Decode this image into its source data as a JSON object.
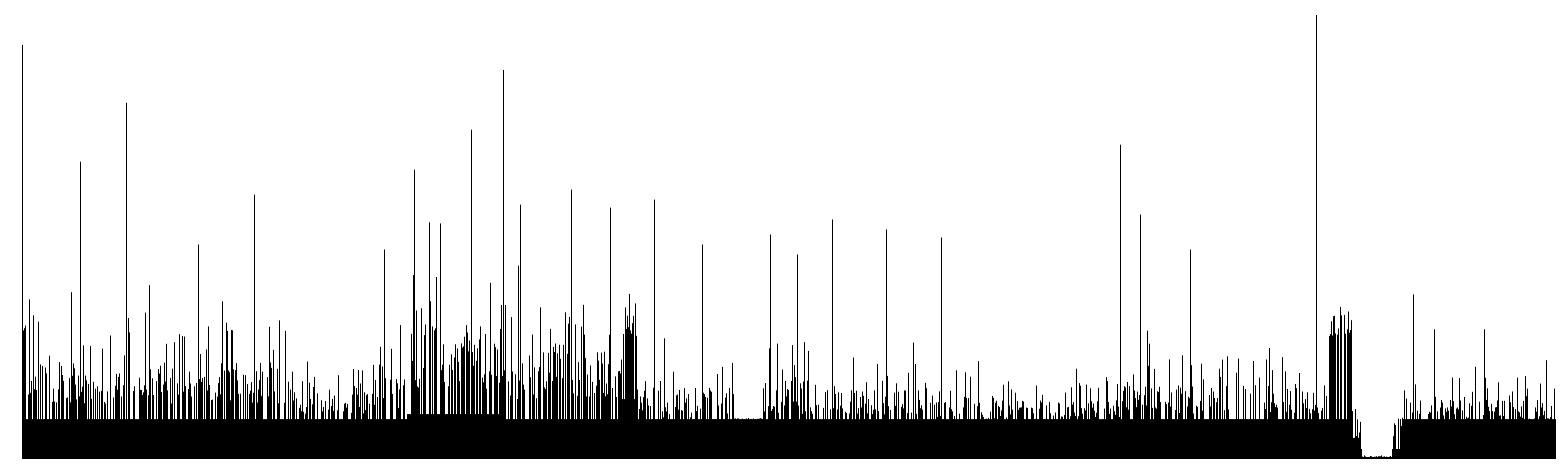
{
  "chart_data": {
    "type": "bar",
    "title": "",
    "xlabel": "",
    "ylabel": "",
    "grid": false,
    "legend": "none",
    "bar_color": "#000000",
    "ylim": [
      0,
      450
    ],
    "segments": [
      {
        "from": 0,
        "to": 270,
        "base": 40,
        "low": 55,
        "high": 175,
        "spikes": [
          [
            0,
            415
          ],
          [
            7,
            160
          ],
          [
            58,
            298
          ],
          [
            104,
            357
          ],
          [
            176,
            215
          ],
          [
            232,
            265
          ]
        ]
      },
      {
        "from": 270,
        "to": 350,
        "base": 40,
        "low": 45,
        "high": 110
      },
      {
        "from": 350,
        "to": 385,
        "base": 40,
        "low": 50,
        "high": 185,
        "spikes": [
          [
            362,
            210
          ]
        ]
      },
      {
        "from": 385,
        "to": 480,
        "base": 45,
        "low": 70,
        "high": 250,
        "spikes": [
          [
            392,
            290
          ],
          [
            449,
            330
          ],
          [
            481,
            390
          ]
        ]
      },
      {
        "from": 480,
        "to": 600,
        "base": 40,
        "low": 60,
        "high": 200,
        "spikes": [
          [
            498,
            255
          ],
          [
            549,
            270
          ],
          [
            588,
            252
          ]
        ]
      },
      {
        "from": 600,
        "to": 615,
        "base": 60,
        "low": 120,
        "high": 250
      },
      {
        "from": 615,
        "to": 712,
        "base": 40,
        "low": 40,
        "high": 130,
        "spikes": [
          [
            632,
            260
          ],
          [
            680,
            215
          ]
        ]
      },
      {
        "from": 712,
        "to": 740,
        "base": 40,
        "low": 40,
        "high": 42
      },
      {
        "from": 740,
        "to": 795,
        "base": 40,
        "low": 45,
        "high": 150,
        "spikes": [
          [
            748,
            225
          ],
          [
            775,
            205
          ],
          [
            810,
            240
          ],
          [
            864,
            230
          ],
          [
            919,
            222
          ]
        ]
      },
      {
        "from": 795,
        "to": 960,
        "base": 40,
        "low": 42,
        "high": 120
      },
      {
        "from": 960,
        "to": 1100,
        "base": 40,
        "low": 40,
        "high": 95,
        "spikes": [
          [
            1098,
            315
          ],
          [
            1118,
            245
          ],
          [
            1168,
            210
          ]
        ]
      },
      {
        "from": 1100,
        "to": 1305,
        "base": 40,
        "low": 45,
        "high": 130
      },
      {
        "from": 1305,
        "to": 1330,
        "base": 40,
        "low": 120,
        "high": 160,
        "spikes": [
          [
            1294,
            445
          ]
        ]
      },
      {
        "from": 1330,
        "to": 1340,
        "base": 10,
        "low": 20,
        "high": 80
      },
      {
        "from": 1340,
        "to": 1370,
        "base": 2,
        "low": 2,
        "high": 4
      },
      {
        "from": 1370,
        "to": 1380,
        "base": 10,
        "low": 20,
        "high": 80
      },
      {
        "from": 1380,
        "to": 1534,
        "base": 40,
        "low": 40,
        "high": 100,
        "spikes": [
          [
            1391,
            165
          ],
          [
            1412,
            130
          ],
          [
            1462,
            130
          ]
        ]
      }
    ]
  }
}
